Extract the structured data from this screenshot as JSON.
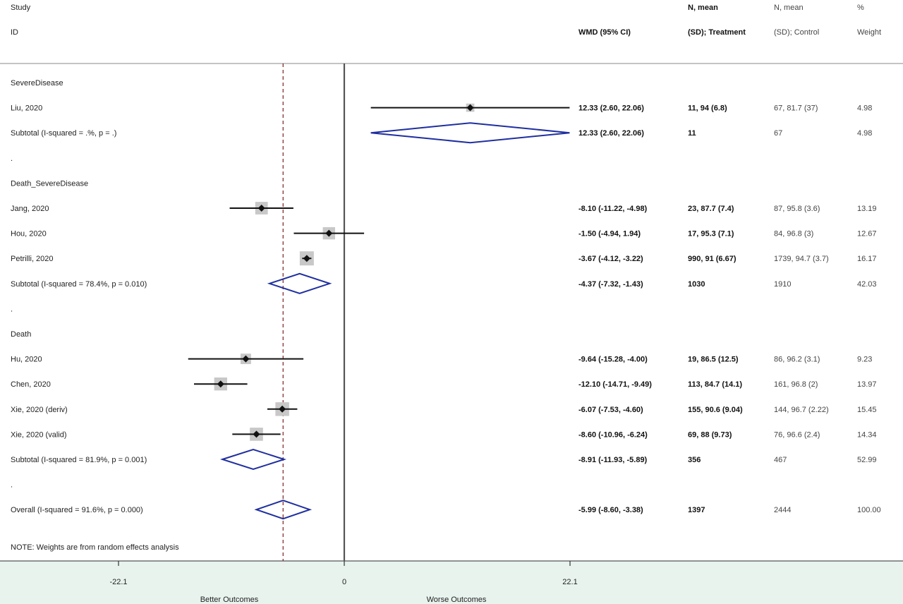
{
  "header": {
    "study": "Study",
    "id": "ID",
    "wmd": "WMD (95% CI)",
    "treat_line1": "N, mean",
    "treat_line2": "(SD); Treatment",
    "ctrl_line1": "N, mean",
    "ctrl_line2": "(SD); Control",
    "weight_line1": "%",
    "weight_line2": "Weight"
  },
  "note": "NOTE: Weights are from random effects analysis",
  "x_axis": {
    "ticks": [
      {
        "value": -22.1,
        "label": "-22.1"
      },
      {
        "value": 0,
        "label": "0"
      },
      {
        "value": 22.1,
        "label": "22.1"
      }
    ],
    "left_label": "Better Outcomes",
    "right_label": "Worse Outcomes"
  },
  "colors": {
    "diamond": "#1f2fa0",
    "reference_dashed": "#7a1f1f",
    "zero_line": "#555555",
    "axis_panel": "#e8f3ee",
    "weight_box": "#c8c8c8"
  },
  "chart_data": {
    "type": "forest",
    "xlim": [
      -30,
      55
    ],
    "overall_estimate": -5.99,
    "rows": [
      {
        "kind": "group",
        "label": "SevereDisease"
      },
      {
        "kind": "study",
        "label": "Liu, 2020",
        "est": 12.33,
        "lo": 2.6,
        "hi": 22.06,
        "ci_text": "12.33 (2.60, 22.06)",
        "treat": "11, 94 (6.8)",
        "ctrl": "67, 81.7 (37)",
        "weight": "4.98"
      },
      {
        "kind": "subtotal",
        "label": "Subtotal  (I-squared = .%, p = .)",
        "est": 12.33,
        "lo": 2.6,
        "hi": 22.06,
        "ci_text": "12.33 (2.60, 22.06)",
        "treat": "11",
        "ctrl": "67",
        "weight": "4.98"
      },
      {
        "kind": "spacer",
        "label": "."
      },
      {
        "kind": "group",
        "label": "Death_SevereDisease"
      },
      {
        "kind": "study",
        "label": "Jang, 2020",
        "est": -8.1,
        "lo": -11.22,
        "hi": -4.98,
        "ci_text": "-8.10 (-11.22, -4.98)",
        "treat": "23, 87.7 (7.4)",
        "ctrl": "87, 95.8 (3.6)",
        "weight": "13.19"
      },
      {
        "kind": "study",
        "label": "Hou, 2020",
        "est": -1.5,
        "lo": -4.94,
        "hi": 1.94,
        "ci_text": "-1.50 (-4.94, 1.94)",
        "treat": "17, 95.3 (7.1)",
        "ctrl": "84, 96.8 (3)",
        "weight": "12.67"
      },
      {
        "kind": "study",
        "label": "Petrilli, 2020",
        "est": -3.67,
        "lo": -4.12,
        "hi": -3.22,
        "ci_text": "-3.67 (-4.12, -3.22)",
        "treat": "990, 91 (6.67)",
        "ctrl": "1739, 94.7 (3.7)",
        "weight": "16.17"
      },
      {
        "kind": "subtotal",
        "label": "Subtotal  (I-squared = 78.4%, p = 0.010)",
        "est": -4.37,
        "lo": -7.32,
        "hi": -1.43,
        "ci_text": "-4.37 (-7.32, -1.43)",
        "treat": "1030",
        "ctrl": "1910",
        "weight": "42.03"
      },
      {
        "kind": "spacer",
        "label": "."
      },
      {
        "kind": "group",
        "label": "Death"
      },
      {
        "kind": "study",
        "label": "Hu, 2020",
        "est": -9.64,
        "lo": -15.28,
        "hi": -4.0,
        "ci_text": "-9.64 (-15.28, -4.00)",
        "treat": "19, 86.5 (12.5)",
        "ctrl": "86, 96.2 (3.1)",
        "weight": "9.23"
      },
      {
        "kind": "study",
        "label": "Chen, 2020",
        "est": -12.1,
        "lo": -14.71,
        "hi": -9.49,
        "ci_text": "-12.10 (-14.71, -9.49)",
        "treat": "113, 84.7 (14.1)",
        "ctrl": "161, 96.8 (2)",
        "weight": "13.97"
      },
      {
        "kind": "study",
        "label": "Xie, 2020 (deriv)",
        "est": -6.07,
        "lo": -7.53,
        "hi": -4.6,
        "ci_text": "-6.07 (-7.53, -4.60)",
        "treat": "155, 90.6 (9.04)",
        "ctrl": "144, 96.7 (2.22)",
        "weight": "15.45"
      },
      {
        "kind": "study",
        "label": "Xie, 2020 (valid)",
        "est": -8.6,
        "lo": -10.96,
        "hi": -6.24,
        "ci_text": "-8.60 (-10.96, -6.24)",
        "treat": "69, 88 (9.73)",
        "ctrl": "76, 96.6 (2.4)",
        "weight": "14.34"
      },
      {
        "kind": "subtotal",
        "label": "Subtotal  (I-squared = 81.9%, p = 0.001)",
        "est": -8.91,
        "lo": -11.93,
        "hi": -5.89,
        "ci_text": "-8.91 (-11.93, -5.89)",
        "treat": "356",
        "ctrl": "467",
        "weight": "52.99"
      },
      {
        "kind": "spacer",
        "label": "."
      },
      {
        "kind": "overall",
        "label": "Overall  (I-squared = 91.6%, p = 0.000)",
        "est": -5.99,
        "lo": -8.6,
        "hi": -3.38,
        "ci_text": "-5.99 (-8.60, -3.38)",
        "treat": "1397",
        "ctrl": "2444",
        "weight": "100.00"
      }
    ]
  }
}
